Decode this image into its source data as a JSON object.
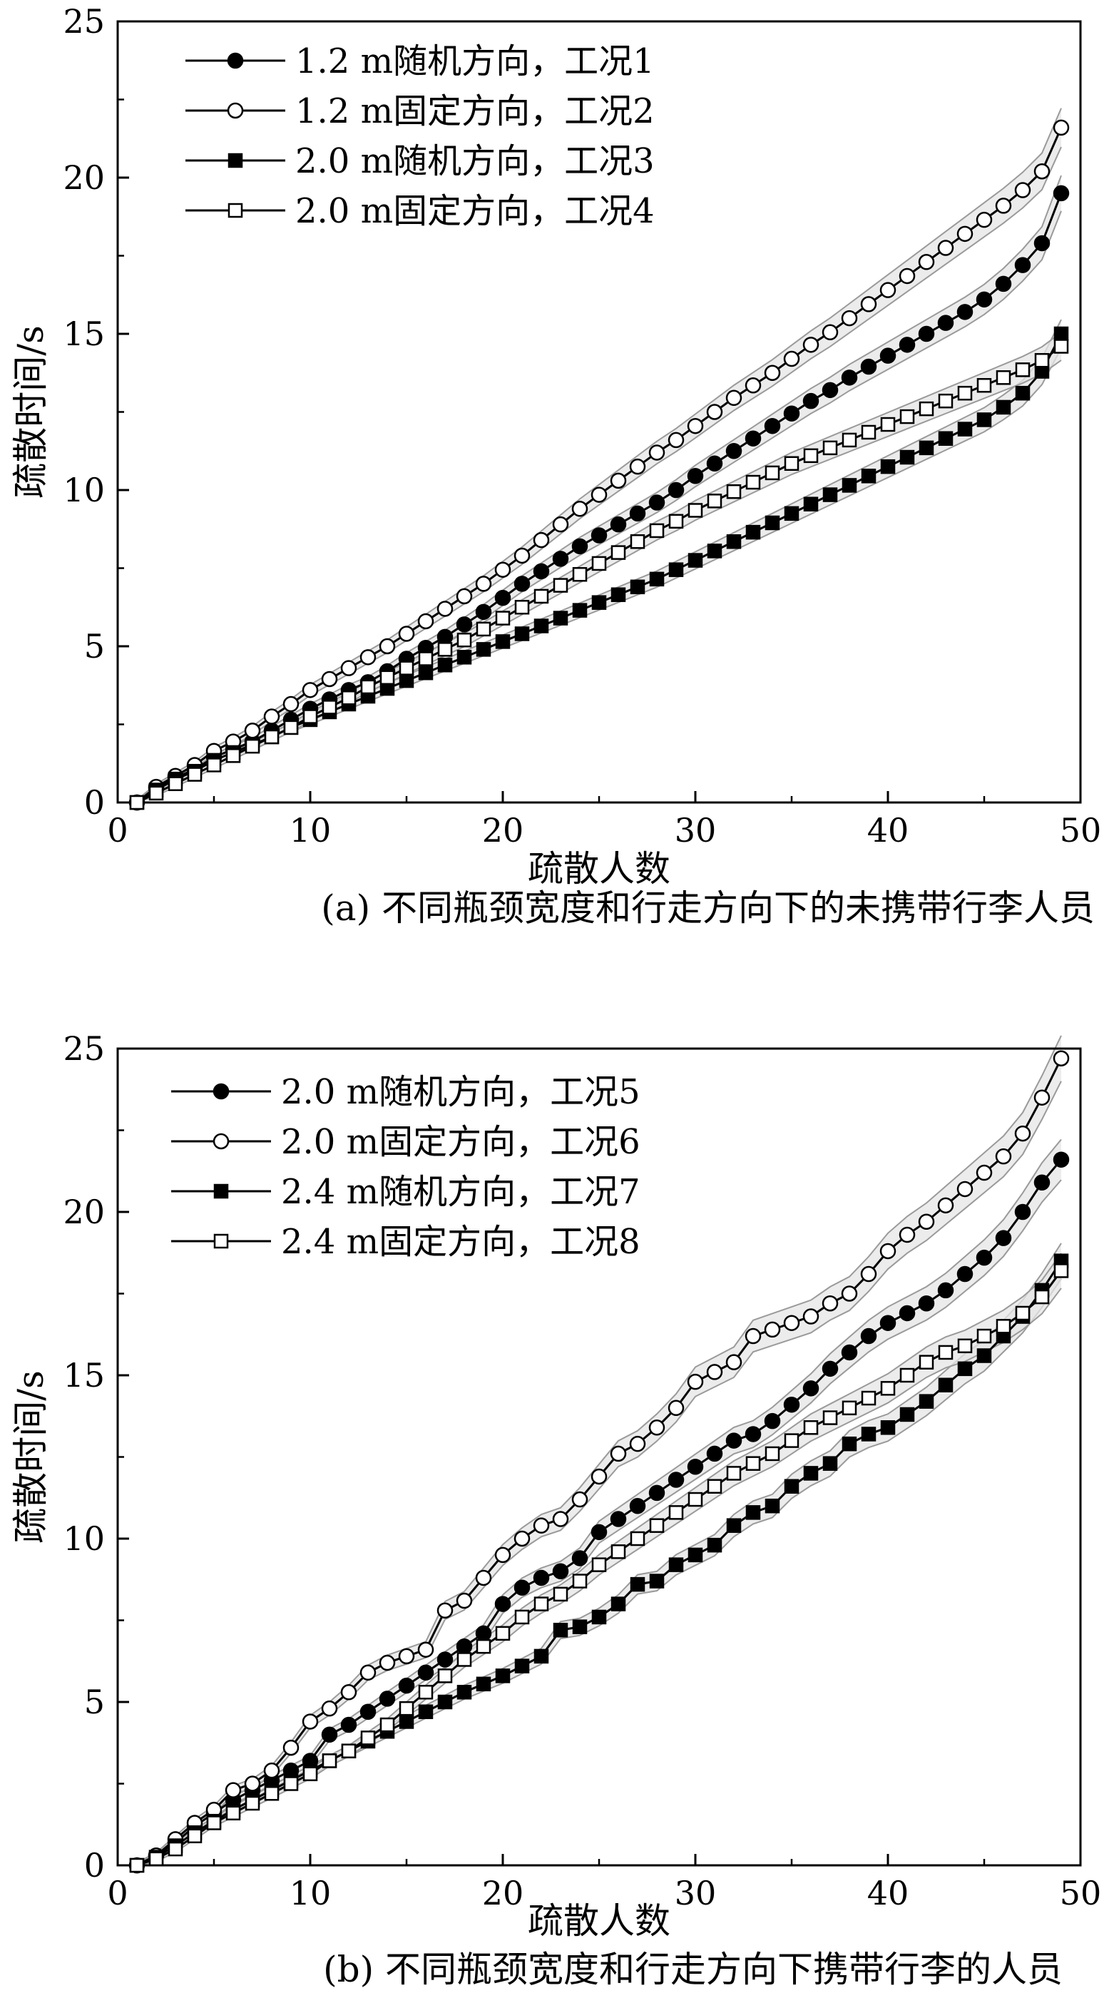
{
  "chart_data": [
    {
      "type": "line",
      "caption": "(a) 不同瓶颈宽度和行走方向下的未携带行李人员",
      "xlabel": "疏散人数",
      "ylabel": "疏散时间/s",
      "xlim": [
        0,
        50
      ],
      "ylim": [
        0,
        25
      ],
      "xticks": [
        0,
        10,
        20,
        30,
        40,
        50
      ],
      "yticks": [
        0,
        5,
        10,
        15,
        20,
        25
      ],
      "legend_position": "top-left",
      "band_color": "#e6e6e6",
      "band_edge_color": "#9a9a9a",
      "series": [
        {
          "name": "1.2 m随机方向，工况1",
          "marker": "filled-circle",
          "x": [
            1,
            2,
            3,
            4,
            5,
            6,
            7,
            8,
            9,
            10,
            11,
            12,
            13,
            14,
            15,
            16,
            17,
            18,
            19,
            20,
            21,
            22,
            23,
            24,
            25,
            26,
            27,
            28,
            29,
            30,
            31,
            32,
            33,
            34,
            35,
            36,
            37,
            38,
            39,
            40,
            41,
            42,
            43,
            44,
            45,
            46,
            47,
            48,
            49
          ],
          "values": [
            0,
            0.45,
            0.8,
            1.05,
            1.45,
            1.7,
            1.95,
            2.3,
            2.65,
            3.0,
            3.3,
            3.6,
            3.85,
            4.2,
            4.6,
            4.95,
            5.3,
            5.7,
            6.1,
            6.55,
            7.0,
            7.4,
            7.8,
            8.2,
            8.55,
            8.9,
            9.25,
            9.6,
            10.0,
            10.45,
            10.85,
            11.25,
            11.65,
            12.05,
            12.45,
            12.85,
            13.2,
            13.6,
            13.95,
            14.3,
            14.65,
            15.0,
            15.35,
            15.7,
            16.1,
            16.6,
            17.2,
            17.9,
            19.5
          ]
        },
        {
          "name": "1.2 m固定方向，工况2",
          "marker": "open-circle",
          "x": [
            1,
            2,
            3,
            4,
            5,
            6,
            7,
            8,
            9,
            10,
            11,
            12,
            13,
            14,
            15,
            16,
            17,
            18,
            19,
            20,
            21,
            22,
            23,
            24,
            25,
            26,
            27,
            28,
            29,
            30,
            31,
            32,
            33,
            34,
            35,
            36,
            37,
            38,
            39,
            40,
            41,
            42,
            43,
            44,
            45,
            46,
            47,
            48,
            49
          ],
          "values": [
            0,
            0.5,
            0.85,
            1.2,
            1.65,
            1.95,
            2.3,
            2.75,
            3.15,
            3.6,
            3.95,
            4.3,
            4.65,
            5.0,
            5.4,
            5.8,
            6.2,
            6.6,
            7.0,
            7.45,
            7.9,
            8.4,
            8.9,
            9.4,
            9.85,
            10.3,
            10.75,
            11.2,
            11.6,
            12.05,
            12.5,
            12.95,
            13.35,
            13.75,
            14.2,
            14.65,
            15.05,
            15.5,
            15.95,
            16.4,
            16.85,
            17.3,
            17.75,
            18.2,
            18.65,
            19.1,
            19.6,
            20.2,
            21.6
          ]
        },
        {
          "name": "2.0 m随机方向，工况3",
          "marker": "filled-square",
          "x": [
            1,
            2,
            3,
            4,
            5,
            6,
            7,
            8,
            9,
            10,
            11,
            12,
            13,
            14,
            15,
            16,
            17,
            18,
            19,
            20,
            21,
            22,
            23,
            24,
            25,
            26,
            27,
            28,
            29,
            30,
            31,
            32,
            33,
            34,
            35,
            36,
            37,
            38,
            39,
            40,
            41,
            42,
            43,
            44,
            45,
            46,
            47,
            48,
            49
          ],
          "values": [
            0,
            0.4,
            0.75,
            1.0,
            1.35,
            1.6,
            1.85,
            2.1,
            2.4,
            2.65,
            2.9,
            3.15,
            3.4,
            3.65,
            3.9,
            4.15,
            4.4,
            4.65,
            4.9,
            5.15,
            5.4,
            5.65,
            5.9,
            6.15,
            6.4,
            6.65,
            6.9,
            7.15,
            7.45,
            7.75,
            8.05,
            8.35,
            8.65,
            8.95,
            9.25,
            9.55,
            9.85,
            10.15,
            10.45,
            10.75,
            11.05,
            11.35,
            11.65,
            11.95,
            12.25,
            12.65,
            13.1,
            13.8,
            15.0
          ]
        },
        {
          "name": "2.0 m固定方向，工况4",
          "marker": "open-square",
          "x": [
            1,
            2,
            3,
            4,
            5,
            6,
            7,
            8,
            9,
            10,
            11,
            12,
            13,
            14,
            15,
            16,
            17,
            18,
            19,
            20,
            21,
            22,
            23,
            24,
            25,
            26,
            27,
            28,
            29,
            30,
            31,
            32,
            33,
            34,
            35,
            36,
            37,
            38,
            39,
            40,
            41,
            42,
            43,
            44,
            45,
            46,
            47,
            48,
            49
          ],
          "values": [
            0,
            0.3,
            0.6,
            0.9,
            1.2,
            1.5,
            1.8,
            2.1,
            2.4,
            2.75,
            3.05,
            3.35,
            3.7,
            4.0,
            4.3,
            4.6,
            4.9,
            5.2,
            5.55,
            5.9,
            6.25,
            6.6,
            6.95,
            7.3,
            7.65,
            8.0,
            8.35,
            8.7,
            9.0,
            9.35,
            9.65,
            9.95,
            10.25,
            10.55,
            10.85,
            11.1,
            11.35,
            11.6,
            11.85,
            12.1,
            12.35,
            12.6,
            12.85,
            13.1,
            13.35,
            13.6,
            13.85,
            14.15,
            14.6
          ]
        }
      ]
    },
    {
      "type": "line",
      "caption": "(b) 不同瓶颈宽度和行走方向下携带行李的人员",
      "xlabel": "疏散人数",
      "ylabel": "疏散时间/s",
      "xlim": [
        0,
        50
      ],
      "ylim": [
        0,
        25
      ],
      "xticks": [
        0,
        10,
        20,
        30,
        40,
        50
      ],
      "yticks": [
        0,
        5,
        10,
        15,
        20,
        25
      ],
      "legend_position": "top-left",
      "band_color": "#e6e6e6",
      "band_edge_color": "#9a9a9a",
      "series": [
        {
          "name": "2.0 m随机方向，工况5",
          "marker": "filled-circle",
          "x": [
            1,
            2,
            3,
            4,
            5,
            6,
            7,
            8,
            9,
            10,
            11,
            12,
            13,
            14,
            15,
            16,
            17,
            18,
            19,
            20,
            21,
            22,
            23,
            24,
            25,
            26,
            27,
            28,
            29,
            30,
            31,
            32,
            33,
            34,
            35,
            36,
            37,
            38,
            39,
            40,
            41,
            42,
            43,
            44,
            45,
            46,
            47,
            48,
            49
          ],
          "values": [
            0,
            0.3,
            0.7,
            1.2,
            1.6,
            2.0,
            2.3,
            2.6,
            2.9,
            3.2,
            4.0,
            4.3,
            4.7,
            5.1,
            5.5,
            5.9,
            6.3,
            6.7,
            7.1,
            8.0,
            8.5,
            8.8,
            9.0,
            9.4,
            10.2,
            10.6,
            11.0,
            11.4,
            11.8,
            12.2,
            12.6,
            13.0,
            13.2,
            13.6,
            14.1,
            14.6,
            15.2,
            15.7,
            16.2,
            16.6,
            16.9,
            17.2,
            17.6,
            18.1,
            18.6,
            19.2,
            20.0,
            20.9,
            21.6
          ]
        },
        {
          "name": "2.0 m固定方向，工况6",
          "marker": "open-circle",
          "x": [
            1,
            2,
            3,
            4,
            5,
            6,
            7,
            8,
            9,
            10,
            11,
            12,
            13,
            14,
            15,
            16,
            17,
            18,
            19,
            20,
            21,
            22,
            23,
            24,
            25,
            26,
            27,
            28,
            29,
            30,
            31,
            32,
            33,
            34,
            35,
            36,
            37,
            38,
            39,
            40,
            41,
            42,
            43,
            44,
            45,
            46,
            47,
            48,
            49
          ],
          "values": [
            0,
            0.3,
            0.8,
            1.3,
            1.7,
            2.3,
            2.5,
            2.9,
            3.6,
            4.4,
            4.8,
            5.3,
            5.9,
            6.2,
            6.4,
            6.6,
            7.8,
            8.1,
            8.8,
            9.5,
            10.0,
            10.4,
            10.6,
            11.2,
            11.9,
            12.6,
            12.9,
            13.4,
            14.0,
            14.8,
            15.1,
            15.4,
            16.2,
            16.4,
            16.6,
            16.8,
            17.2,
            17.5,
            18.1,
            18.8,
            19.3,
            19.7,
            20.2,
            20.7,
            21.2,
            21.7,
            22.4,
            23.5,
            24.7
          ]
        },
        {
          "name": "2.4 m随机方向，工况7",
          "marker": "filled-square",
          "x": [
            1,
            2,
            3,
            4,
            5,
            6,
            7,
            8,
            9,
            10,
            11,
            12,
            13,
            14,
            15,
            16,
            17,
            18,
            19,
            20,
            21,
            22,
            23,
            24,
            25,
            26,
            27,
            28,
            29,
            30,
            31,
            32,
            33,
            34,
            35,
            36,
            37,
            38,
            39,
            40,
            41,
            42,
            43,
            44,
            45,
            46,
            47,
            48,
            49
          ],
          "values": [
            0,
            0.25,
            0.6,
            1.0,
            1.35,
            1.7,
            2.0,
            2.3,
            2.6,
            2.9,
            3.2,
            3.5,
            3.8,
            4.1,
            4.4,
            4.7,
            5.0,
            5.3,
            5.55,
            5.8,
            6.1,
            6.4,
            7.2,
            7.3,
            7.6,
            8.0,
            8.6,
            8.7,
            9.2,
            9.5,
            9.8,
            10.4,
            10.8,
            11.0,
            11.6,
            12.0,
            12.3,
            12.9,
            13.2,
            13.4,
            13.8,
            14.2,
            14.7,
            15.2,
            15.6,
            16.2,
            16.8,
            17.6,
            18.5
          ]
        },
        {
          "name": "2.4 m固定方向，工况8",
          "marker": "open-square",
          "x": [
            1,
            2,
            3,
            4,
            5,
            6,
            7,
            8,
            9,
            10,
            11,
            12,
            13,
            14,
            15,
            16,
            17,
            18,
            19,
            20,
            21,
            22,
            23,
            24,
            25,
            26,
            27,
            28,
            29,
            30,
            31,
            32,
            33,
            34,
            35,
            36,
            37,
            38,
            39,
            40,
            41,
            42,
            43,
            44,
            45,
            46,
            47,
            48,
            49
          ],
          "values": [
            0,
            0.2,
            0.5,
            0.9,
            1.3,
            1.6,
            1.9,
            2.2,
            2.5,
            2.8,
            3.2,
            3.5,
            3.9,
            4.3,
            4.8,
            5.3,
            5.8,
            6.3,
            6.7,
            7.1,
            7.6,
            8.0,
            8.3,
            8.7,
            9.2,
            9.6,
            10.0,
            10.4,
            10.8,
            11.2,
            11.6,
            12.0,
            12.3,
            12.6,
            13.0,
            13.4,
            13.7,
            14.0,
            14.3,
            14.6,
            15.0,
            15.4,
            15.7,
            15.9,
            16.2,
            16.5,
            16.9,
            17.4,
            18.2
          ]
        }
      ]
    }
  ]
}
